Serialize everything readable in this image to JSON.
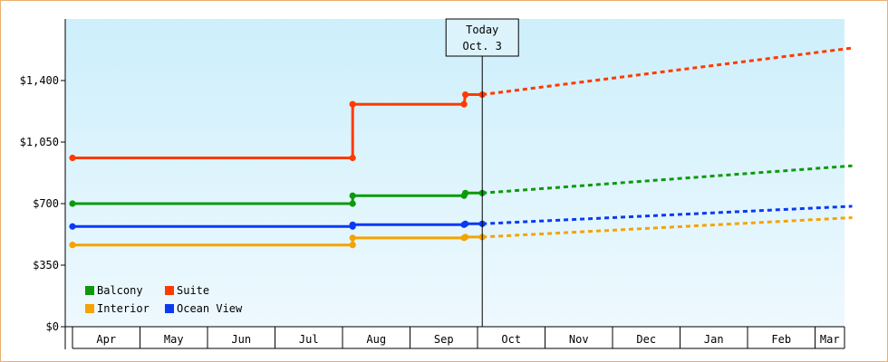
{
  "chart_data": {
    "type": "line",
    "title": "",
    "xlabel": "",
    "ylabel": "",
    "ylim": [
      0,
      1750
    ],
    "y_ticks": [
      {
        "value": 0,
        "label": "$0"
      },
      {
        "value": 350,
        "label": "$350"
      },
      {
        "value": 700,
        "label": "$700"
      },
      {
        "value": 1050,
        "label": "$1,050"
      },
      {
        "value": 1400,
        "label": "$1,400"
      }
    ],
    "x_unit": "month index (0 = Apr 1, 12 = Apr 1 next year)",
    "xlim": [
      0,
      11.55
    ],
    "months": [
      "Apr",
      "May",
      "Jun",
      "Jul",
      "Aug",
      "Sep",
      "Oct",
      "Nov",
      "Dec",
      "Jan",
      "Feb",
      "Mar"
    ],
    "today": {
      "x": 6.07,
      "label_line1": "Today",
      "label_line2": "Oct. 3"
    },
    "grid": false,
    "legend_position": "bottom-left",
    "series": [
      {
        "name": "Balcony",
        "color": "#0c9a0c",
        "history": [
          [
            0,
            700
          ],
          [
            4.15,
            700
          ],
          [
            4.15,
            745
          ],
          [
            5.8,
            745
          ],
          [
            5.82,
            760
          ],
          [
            6.07,
            760
          ]
        ],
        "markers": [
          [
            0,
            700
          ],
          [
            4.15,
            700
          ],
          [
            4.15,
            745
          ],
          [
            5.8,
            745
          ],
          [
            5.82,
            760
          ],
          [
            6.07,
            760
          ]
        ],
        "forecast": [
          [
            6.07,
            760
          ],
          [
            11.55,
            915
          ]
        ]
      },
      {
        "name": "Suite",
        "color": "#ff3a00",
        "history": [
          [
            0,
            960
          ],
          [
            4.15,
            960
          ],
          [
            4.15,
            1265
          ],
          [
            5.8,
            1265
          ],
          [
            5.82,
            1320
          ],
          [
            6.07,
            1320
          ]
        ],
        "markers": [
          [
            0,
            960
          ],
          [
            4.15,
            960
          ],
          [
            4.15,
            1265
          ],
          [
            5.8,
            1265
          ],
          [
            5.82,
            1320
          ],
          [
            6.07,
            1320
          ]
        ],
        "forecast": [
          [
            6.07,
            1320
          ],
          [
            11.55,
            1585
          ]
        ]
      },
      {
        "name": "Interior",
        "color": "#f5a300",
        "history": [
          [
            0,
            465
          ],
          [
            4.15,
            465
          ],
          [
            4.15,
            505
          ],
          [
            5.8,
            505
          ],
          [
            5.82,
            510
          ],
          [
            6.07,
            510
          ]
        ],
        "markers": [
          [
            0,
            465
          ],
          [
            4.15,
            465
          ],
          [
            4.15,
            505
          ],
          [
            5.8,
            505
          ],
          [
            5.82,
            510
          ],
          [
            6.07,
            510
          ]
        ],
        "forecast": [
          [
            6.07,
            510
          ],
          [
            11.55,
            620
          ]
        ]
      },
      {
        "name": "Ocean View",
        "color": "#0a3af5",
        "history": [
          [
            0,
            570
          ],
          [
            4.15,
            570
          ],
          [
            4.15,
            580
          ],
          [
            5.8,
            580
          ],
          [
            5.82,
            585
          ],
          [
            6.07,
            585
          ]
        ],
        "markers": [
          [
            0,
            570
          ],
          [
            4.15,
            570
          ],
          [
            4.15,
            580
          ],
          [
            5.8,
            580
          ],
          [
            5.82,
            585
          ],
          [
            6.07,
            585
          ]
        ],
        "forecast": [
          [
            6.07,
            585
          ],
          [
            11.55,
            685
          ]
        ]
      }
    ],
    "legend_order": [
      "Balcony",
      "Suite",
      "Interior",
      "Ocean View"
    ]
  }
}
